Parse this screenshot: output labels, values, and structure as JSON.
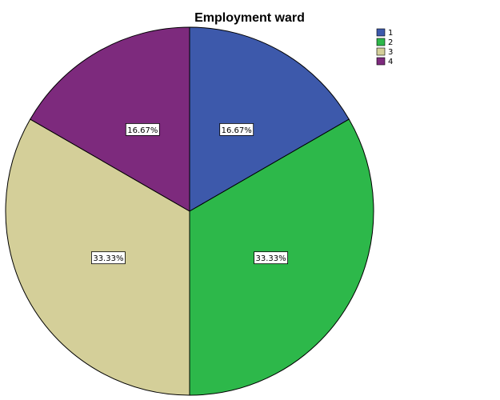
{
  "chart_data": {
    "type": "pie",
    "title": "Employment ward",
    "categories": [
      "1",
      "2",
      "3",
      "4"
    ],
    "values": [
      16.67,
      33.33,
      33.33,
      16.67
    ],
    "data_labels": [
      "16.67%",
      "33.33%",
      "33.33%",
      "16.67%"
    ],
    "colors": [
      "#3d59ab",
      "#2db84a",
      "#d4cf99",
      "#7d2a7d"
    ],
    "start_angle_deg": 0,
    "direction": "clockwise",
    "legend": {
      "position": "top-right",
      "entries": [
        "1",
        "2",
        "3",
        "4"
      ]
    }
  }
}
